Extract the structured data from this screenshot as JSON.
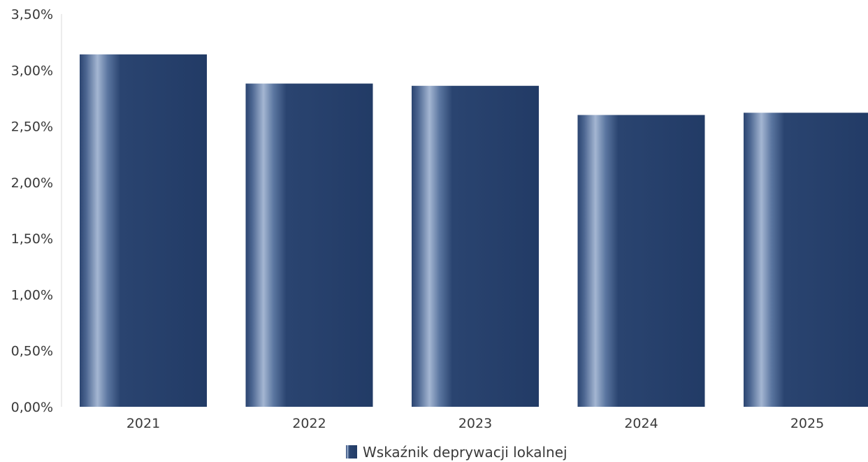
{
  "chart_data": {
    "type": "bar",
    "categories": [
      "2021",
      "2022",
      "2023",
      "2024",
      "2025"
    ],
    "series": [
      {
        "name": "Wskaźnik deprywacji lokalnej",
        "values": [
          3.14,
          2.88,
          2.86,
          2.6,
          2.62
        ]
      }
    ],
    "y_ticks": [
      "0,00%",
      "0,50%",
      "1,00%",
      "1,50%",
      "2,00%",
      "2,50%",
      "3,00%",
      "3,50%"
    ],
    "ylim": [
      0,
      3.5
    ],
    "grid": false,
    "legend_position": "bottom-center",
    "colors": {
      "bar": "#253f6b",
      "bar_highlight": "#9eb0cc"
    }
  }
}
